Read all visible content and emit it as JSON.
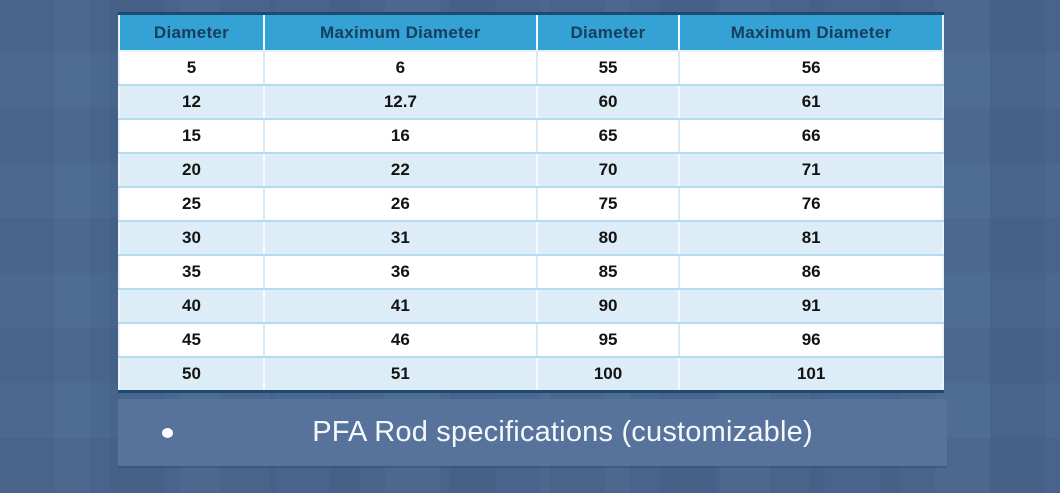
{
  "chart_data": {
    "type": "table",
    "title": "PFA Rod specifications (customizable)",
    "columns": [
      "Diameter",
      "Maximum Diameter",
      "Diameter",
      "Maximum Diameter"
    ],
    "rows": [
      [
        5,
        6,
        55,
        56
      ],
      [
        12,
        12.7,
        60,
        61
      ],
      [
        15,
        16,
        65,
        66
      ],
      [
        20,
        22,
        70,
        71
      ],
      [
        25,
        26,
        75,
        76
      ],
      [
        30,
        31,
        80,
        81
      ],
      [
        35,
        36,
        85,
        86
      ],
      [
        40,
        41,
        90,
        91
      ],
      [
        45,
        46,
        95,
        96
      ],
      [
        50,
        51,
        100,
        101
      ]
    ],
    "layout": {
      "header_position": "top",
      "zebra_striping": true,
      "caption_position": "bottom"
    }
  },
  "caption": {
    "bullet": "•",
    "text": "PFA Rod specifications (customizable)"
  },
  "colors": {
    "page_background": "#4b6890",
    "header_background": "#35a2d5",
    "header_text": "#153e5f",
    "row_white": "#ffffff",
    "row_shaded": "#dcedf7",
    "row_divider": "#b5dbee",
    "table_border_dark": "#1d4a73",
    "caption_background": "#57739b",
    "caption_text": "#f4f8fc",
    "cell_text": "#131313"
  }
}
